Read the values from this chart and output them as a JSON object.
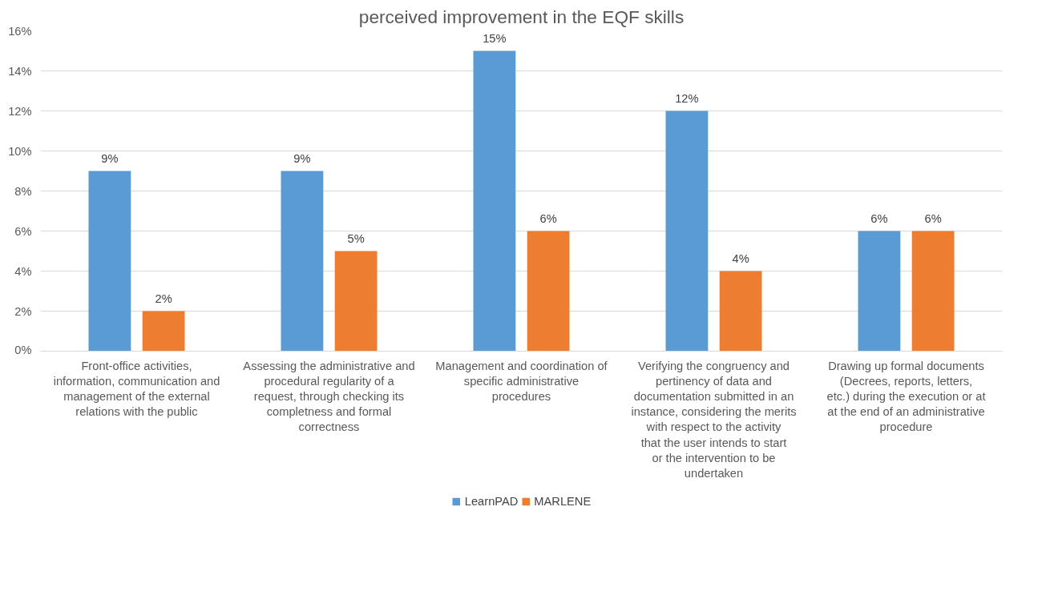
{
  "chart_data": {
    "type": "bar",
    "title": "perceived improvement in the EQF skills",
    "categories": [
      "Front-office activities, information, communication and management of the external relations with the public",
      "Assessing the administrative and procedural regularity of a request, through checking its completness and formal correctness",
      "Management and coordination of specific administrative procedures",
      "Verifying the congruency and pertinency of data and documentation submitted in an instance, considering the merits with respect to the activity that the user intends to start or the intervention to be undertaken",
      "Drawing up formal documents (Decrees, reports, letters, etc.) during the execution or at at the end of an administrative procedure"
    ],
    "series": [
      {
        "name": "LearnPAD",
        "color": "#5b9bd5",
        "values": [
          9,
          9,
          15,
          12,
          6
        ],
        "value_labels": [
          "9%",
          "9%",
          "15%",
          "12%",
          "6%"
        ]
      },
      {
        "name": "MARLENE",
        "color": "#ed7d31",
        "values": [
          2,
          5,
          6,
          4,
          6
        ],
        "value_labels": [
          "2%",
          "5%",
          "6%",
          "4%",
          "6%"
        ]
      }
    ],
    "ylim": [
      0,
      16
    ],
    "yticks": [
      {
        "value": 0,
        "label": "0%"
      },
      {
        "value": 2,
        "label": "2%"
      },
      {
        "value": 4,
        "label": "4%"
      },
      {
        "value": 6,
        "label": "6%"
      },
      {
        "value": 8,
        "label": "8%"
      },
      {
        "value": 10,
        "label": "10%"
      },
      {
        "value": 12,
        "label": "12%"
      },
      {
        "value": 14,
        "label": "14%"
      },
      {
        "value": 16,
        "label": "16%"
      }
    ],
    "grid": "y",
    "legend": "bottom"
  }
}
